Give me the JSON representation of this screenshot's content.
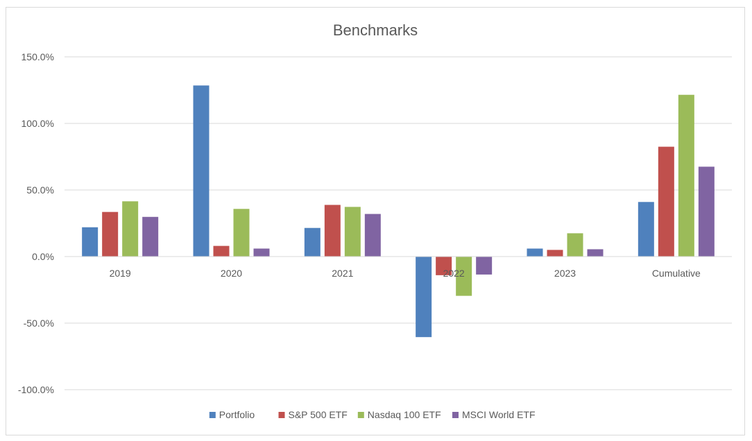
{
  "chart_data": {
    "type": "bar",
    "title": "Benchmarks",
    "xlabel": "",
    "ylabel": "",
    "categories": [
      "2019",
      "2020",
      "2021",
      "2022",
      "2023",
      "Cumulative"
    ],
    "y_ticks": [
      "150.0%",
      "100.0%",
      "50.0%",
      "0.0%",
      "-50.0%",
      "-100.0%"
    ],
    "ylim": [
      -100,
      150
    ],
    "grid": true,
    "legend_position": "bottom",
    "series": [
      {
        "name": "Portfolio",
        "color": "#4f81bd",
        "values": [
          22.0,
          128.5,
          21.5,
          -60.5,
          6.0,
          41.0
        ]
      },
      {
        "name": "S&P 500 ETF",
        "color": "#c0504d",
        "values": [
          33.5,
          8.0,
          38.8,
          -14.0,
          5.0,
          82.5
        ]
      },
      {
        "name": "Nasdaq 100 ETF",
        "color": "#9bbb59",
        "values": [
          41.5,
          35.8,
          37.3,
          -29.5,
          17.5,
          121.5
        ]
      },
      {
        "name": "MSCI World ETF",
        "color": "#8064a2",
        "values": [
          29.8,
          6.0,
          32.0,
          -13.5,
          5.5,
          67.5
        ]
      }
    ]
  }
}
